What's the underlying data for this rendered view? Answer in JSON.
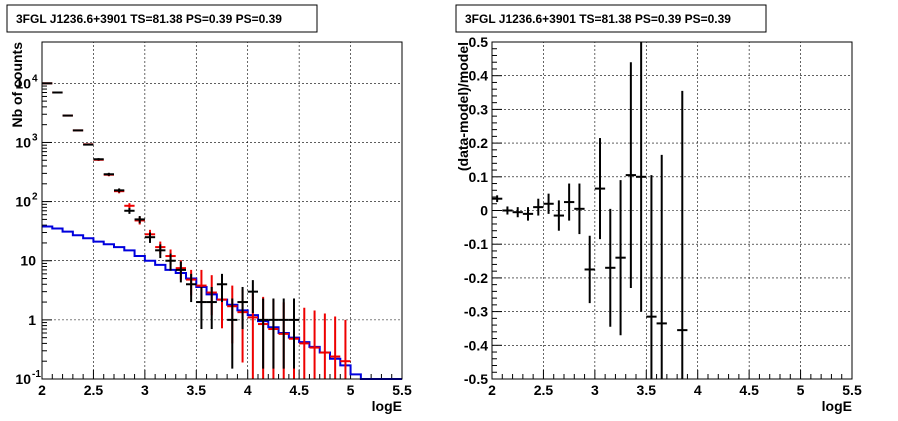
{
  "chart_data": [
    {
      "type": "line",
      "title": "3FGL J1236.6+3901 TS=81.38 PS=0.39 PS=0.39",
      "xlabel": "logE",
      "ylabel": "Nb of counts",
      "xlim": [
        2,
        5.5
      ],
      "ylim": [
        0.1,
        50000
      ],
      "yscale": "log",
      "grid": true,
      "xticks": [
        "2",
        "2.5",
        "3",
        "3.5",
        "4",
        "4.5",
        "5",
        "5.5"
      ],
      "yticks": [
        "10^-1",
        "1",
        "10",
        "10^2",
        "10^3",
        "10^4"
      ],
      "bin_width": 0.1,
      "series": [
        {
          "color": "#000000",
          "style": "errorbar",
          "x": [
            2.05,
            2.15,
            2.25,
            2.35,
            2.45,
            2.55,
            2.65,
            2.75,
            2.85,
            2.95,
            3.05,
            3.15,
            3.25,
            3.35,
            3.45,
            3.55,
            3.65,
            3.75,
            3.85,
            3.95,
            4.05,
            4.15,
            4.25,
            4.35,
            4.45
          ],
          "y": [
            10000,
            7000,
            2850,
            1600,
            920,
            520,
            290,
            155,
            70,
            50,
            25,
            15,
            10,
            7,
            4,
            2,
            2,
            4,
            1,
            2,
            3,
            1,
            1,
            1,
            1
          ],
          "yerr_low": [
            100,
            84,
            53,
            40,
            30,
            23,
            17,
            12,
            8,
            7,
            5,
            3.9,
            3.2,
            2.7,
            2.0,
            1.3,
            1.3,
            2.0,
            0.85,
            1.3,
            1.7,
            0.85,
            0.85,
            0.85,
            0.85
          ],
          "yerr_high": [
            100,
            84,
            53,
            40,
            30,
            23,
            17,
            12,
            8,
            7,
            5,
            3.9,
            3.2,
            2.7,
            2.0,
            1.6,
            1.6,
            2.0,
            1.3,
            1.6,
            1.7,
            1.3,
            1.3,
            1.3,
            1.3
          ]
        },
        {
          "color": "#ee0000",
          "style": "errorbar",
          "x": [
            2.05,
            2.15,
            2.25,
            2.35,
            2.45,
            2.55,
            2.65,
            2.75,
            2.85,
            2.95,
            3.05,
            3.15,
            3.25,
            3.35,
            3.45,
            3.55,
            3.65,
            3.75,
            3.85,
            3.95,
            4.05,
            4.15,
            4.25,
            4.35,
            4.45,
            4.55,
            4.65,
            4.75,
            4.85,
            4.95
          ],
          "y": [
            10000,
            7000,
            2850,
            1600,
            930,
            510,
            285,
            150,
            85,
            48,
            28,
            17,
            12,
            7.5,
            4.8,
            3.8,
            2.9,
            2.2,
            1.7,
            1.35,
            1.1,
            0.85,
            0.7,
            0.58,
            0.48,
            0.4,
            0.34,
            0.28,
            0.24,
            0.2
          ],
          "yerr_low": [
            100,
            84,
            53,
            40,
            30,
            23,
            17,
            12,
            9,
            7,
            5.3,
            4.1,
            3.5,
            2.7,
            2.2,
            1.9,
            1.7,
            1.48,
            1.3,
            1.16,
            1.0,
            0.75,
            0.6,
            0.48,
            0.38,
            0.3,
            0.24,
            0.18,
            0.14,
            0.1
          ],
          "yerr_high": [
            100,
            84,
            53,
            40,
            30,
            23,
            17,
            12,
            9,
            7,
            5.3,
            4.1,
            3.5,
            2.7,
            2.2,
            3.2,
            2.8,
            2.4,
            2.1,
            1.9,
            1.7,
            1.6,
            1.5,
            1.4,
            1.3,
            1.2,
            1.1,
            1.0,
            0.9,
            0.8
          ]
        },
        {
          "color": "#0000dd",
          "style": "step",
          "x": [
            2.05,
            2.15,
            2.25,
            2.35,
            2.45,
            2.55,
            2.65,
            2.75,
            2.85,
            2.95,
            3.05,
            3.15,
            3.25,
            3.35,
            3.45,
            3.55,
            3.65,
            3.75,
            3.85,
            3.95,
            4.05,
            4.15,
            4.25,
            4.35,
            4.45,
            4.55,
            4.65,
            4.75,
            4.85,
            4.95,
            5.05,
            5.15,
            5.25,
            5.35,
            5.45
          ],
          "y": [
            38,
            35,
            31,
            27,
            24,
            21,
            19,
            17,
            15,
            12,
            10,
            8.5,
            7,
            6.2,
            5,
            3.6,
            2.7,
            2.2,
            1.8,
            1.45,
            1.2,
            0.95,
            0.75,
            0.6,
            0.5,
            0.42,
            0.35,
            0.28,
            0.22,
            0.17,
            0.12,
            0.1,
            0.1,
            0.1,
            0.1
          ]
        }
      ]
    },
    {
      "type": "scatter",
      "title": "3FGL J1236.6+3901 TS=81.38 PS=0.39 PS=0.39",
      "xlabel": "logE",
      "ylabel": "(data-model)/model",
      "xlim": [
        2,
        5.5
      ],
      "ylim": [
        -0.5,
        0.5
      ],
      "grid": true,
      "xticks": [
        "2",
        "2.5",
        "3",
        "3.5",
        "4",
        "4.5",
        "5",
        "5.5"
      ],
      "yticks": [
        "-0.5",
        "-0.4",
        "-0.3",
        "-0.2",
        "-0.1",
        "0",
        "0.1",
        "0.2",
        "0.3",
        "0.4",
        "0.5"
      ],
      "bin_width": 0.1,
      "series": [
        {
          "color": "#000000",
          "style": "errorbar",
          "x": [
            2.05,
            2.15,
            2.25,
            2.35,
            2.45,
            2.55,
            2.65,
            2.75,
            2.85,
            2.95,
            3.05,
            3.15,
            3.25,
            3.35,
            3.45,
            3.55,
            3.65,
            3.85
          ],
          "y": [
            0.035,
            0.0,
            -0.005,
            -0.01,
            0.01,
            0.02,
            -0.015,
            0.025,
            0.005,
            -0.175,
            0.065,
            -0.17,
            -0.14,
            0.105,
            0.1,
            -0.315,
            -0.335,
            -0.355
          ],
          "yerr": [
            0.01,
            0.012,
            0.015,
            0.02,
            0.025,
            0.03,
            0.045,
            0.055,
            0.075,
            0.1,
            0.15,
            0.175,
            0.23,
            0.335,
            0.4,
            0.42,
            0.5,
            0.71
          ]
        }
      ]
    }
  ]
}
